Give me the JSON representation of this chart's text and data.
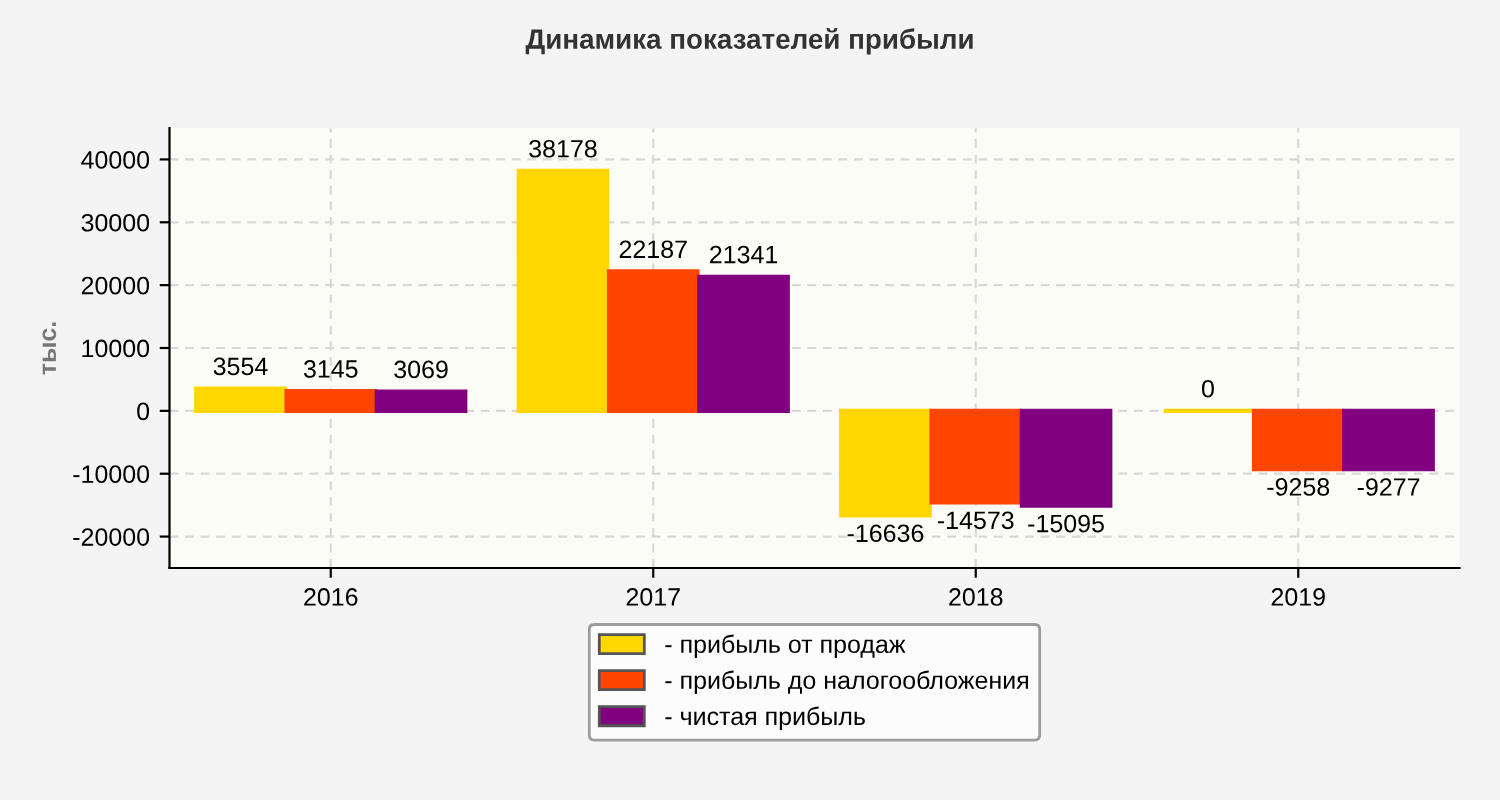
{
  "chart_data": {
    "type": "bar",
    "title": "Динамика показателей прибыли",
    "ylabel": "тыс.",
    "categories": [
      "2016",
      "2017",
      "2018",
      "2019"
    ],
    "series": [
      {
        "name": "- прибыль от продаж",
        "color": "#ffd700",
        "values": [
          3554,
          38178,
          -16636,
          0
        ]
      },
      {
        "name": "- прибыль до налогообложения",
        "color": "#ff4500",
        "values": [
          3145,
          22187,
          -14573,
          -9258
        ]
      },
      {
        "name": "- чистая прибыль",
        "color": "#800080",
        "values": [
          3069,
          21341,
          -15095,
          -9277
        ]
      }
    ],
    "ylim": [
      -25000,
      45000
    ],
    "yticks": [
      -20000,
      -10000,
      0,
      10000,
      20000,
      30000,
      40000
    ],
    "grid": true,
    "legend": "bottom",
    "data_labels": true
  }
}
